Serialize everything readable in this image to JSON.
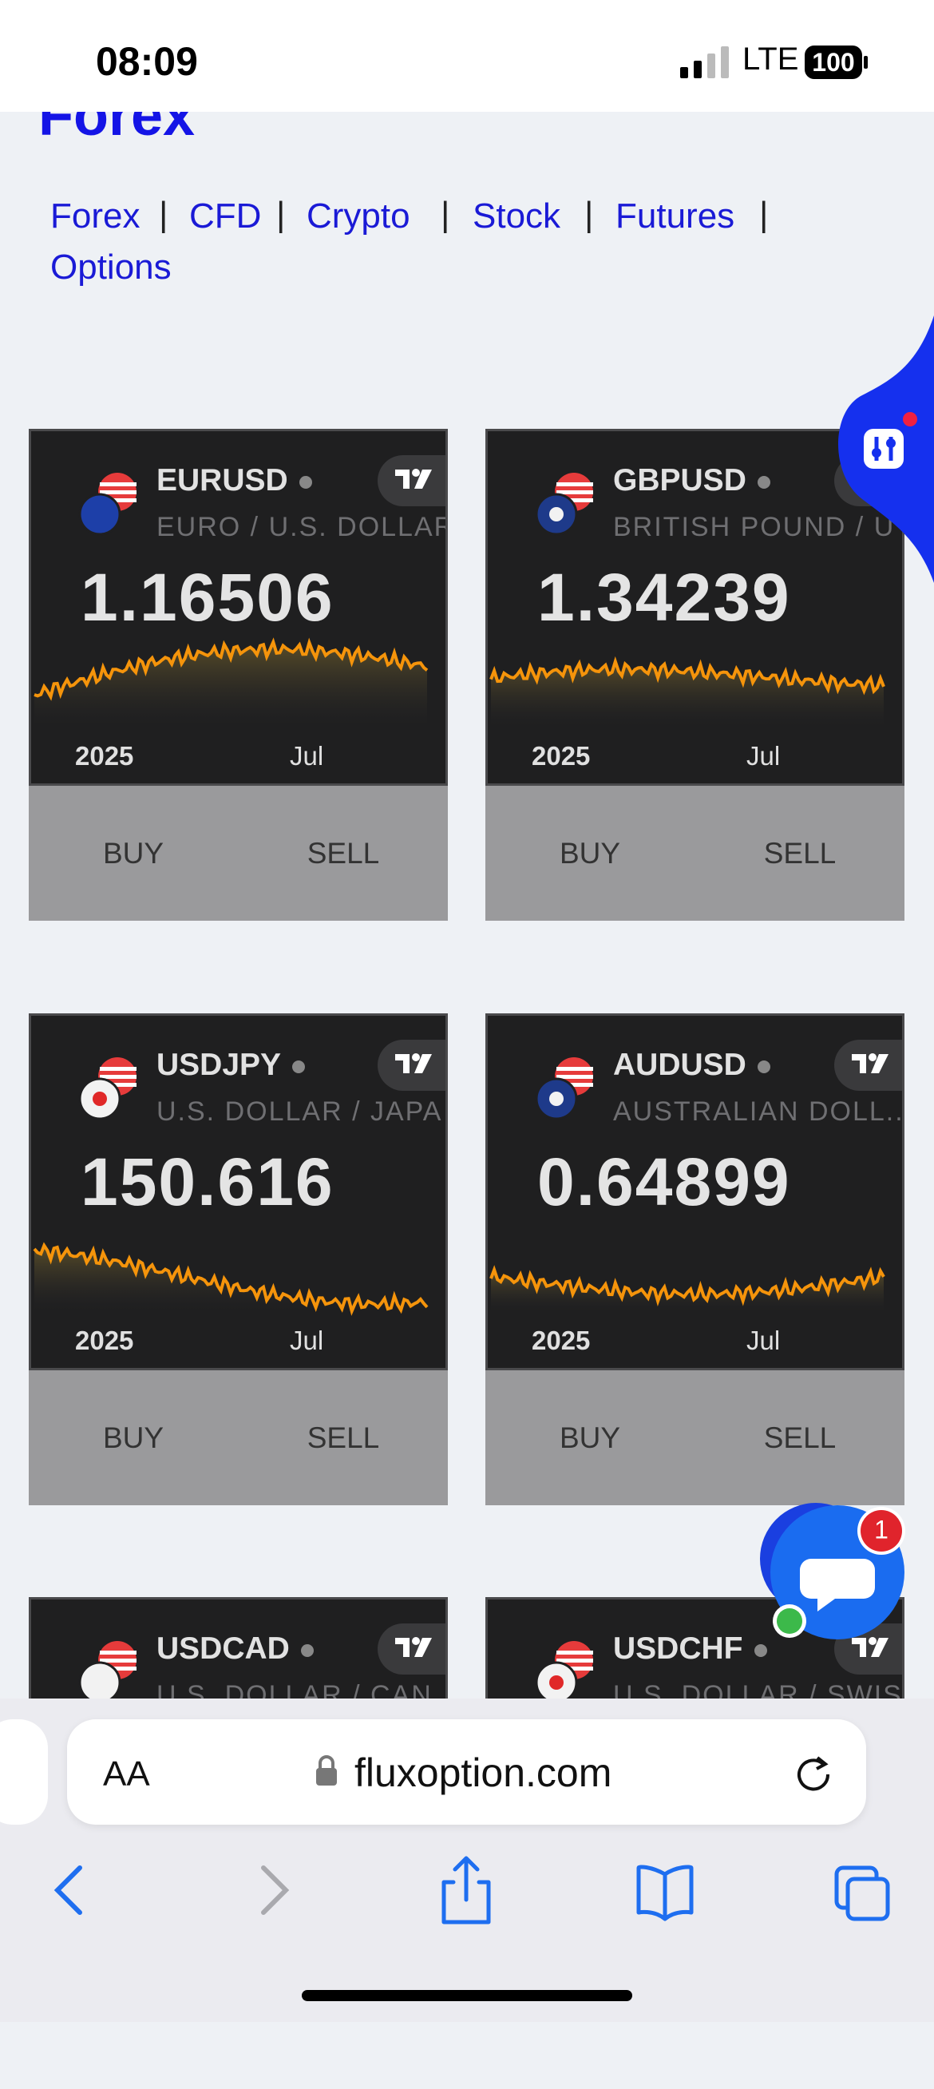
{
  "status_bar": {
    "time": "08:09",
    "network": "LTE",
    "battery": "100"
  },
  "header": {
    "title": "Forex"
  },
  "nav": {
    "links": [
      "Forex",
      "CFD",
      "Crypto",
      "Stock",
      "Futures",
      "Options"
    ],
    "separator": "|"
  },
  "cards": [
    {
      "symbol": "EURUSD",
      "description": "EURO / U.S. DOLLAR",
      "price": "1.16506",
      "axis_labels": [
        "2025",
        "Jul"
      ],
      "buy": "BUY",
      "sell": "SELL"
    },
    {
      "symbol": "GBPUSD",
      "description": "BRITISH POUND / U",
      "price": "1.34239",
      "axis_labels": [
        "2025",
        "Jul"
      ],
      "buy": "BUY",
      "sell": "SELL"
    },
    {
      "symbol": "USDJPY",
      "description": "U.S. DOLLAR / JAPA",
      "price": "150.616",
      "axis_labels": [
        "2025",
        "Jul"
      ],
      "buy": "BUY",
      "sell": "SELL"
    },
    {
      "symbol": "AUDUSD",
      "description": "AUSTRALIAN DOLL...",
      "price": "0.64899",
      "axis_labels": [
        "2025",
        "Jul"
      ],
      "buy": "BUY",
      "sell": "SELL"
    },
    {
      "symbol": "USDCAD",
      "description": "U.S. DOLLAR / CAN"
    },
    {
      "symbol": "USDCHF",
      "description": "U.S. DOLLAR / SWIS"
    }
  ],
  "chat": {
    "badge": "1"
  },
  "browser": {
    "text_size": "AA",
    "url": "fluxoption.com"
  }
}
